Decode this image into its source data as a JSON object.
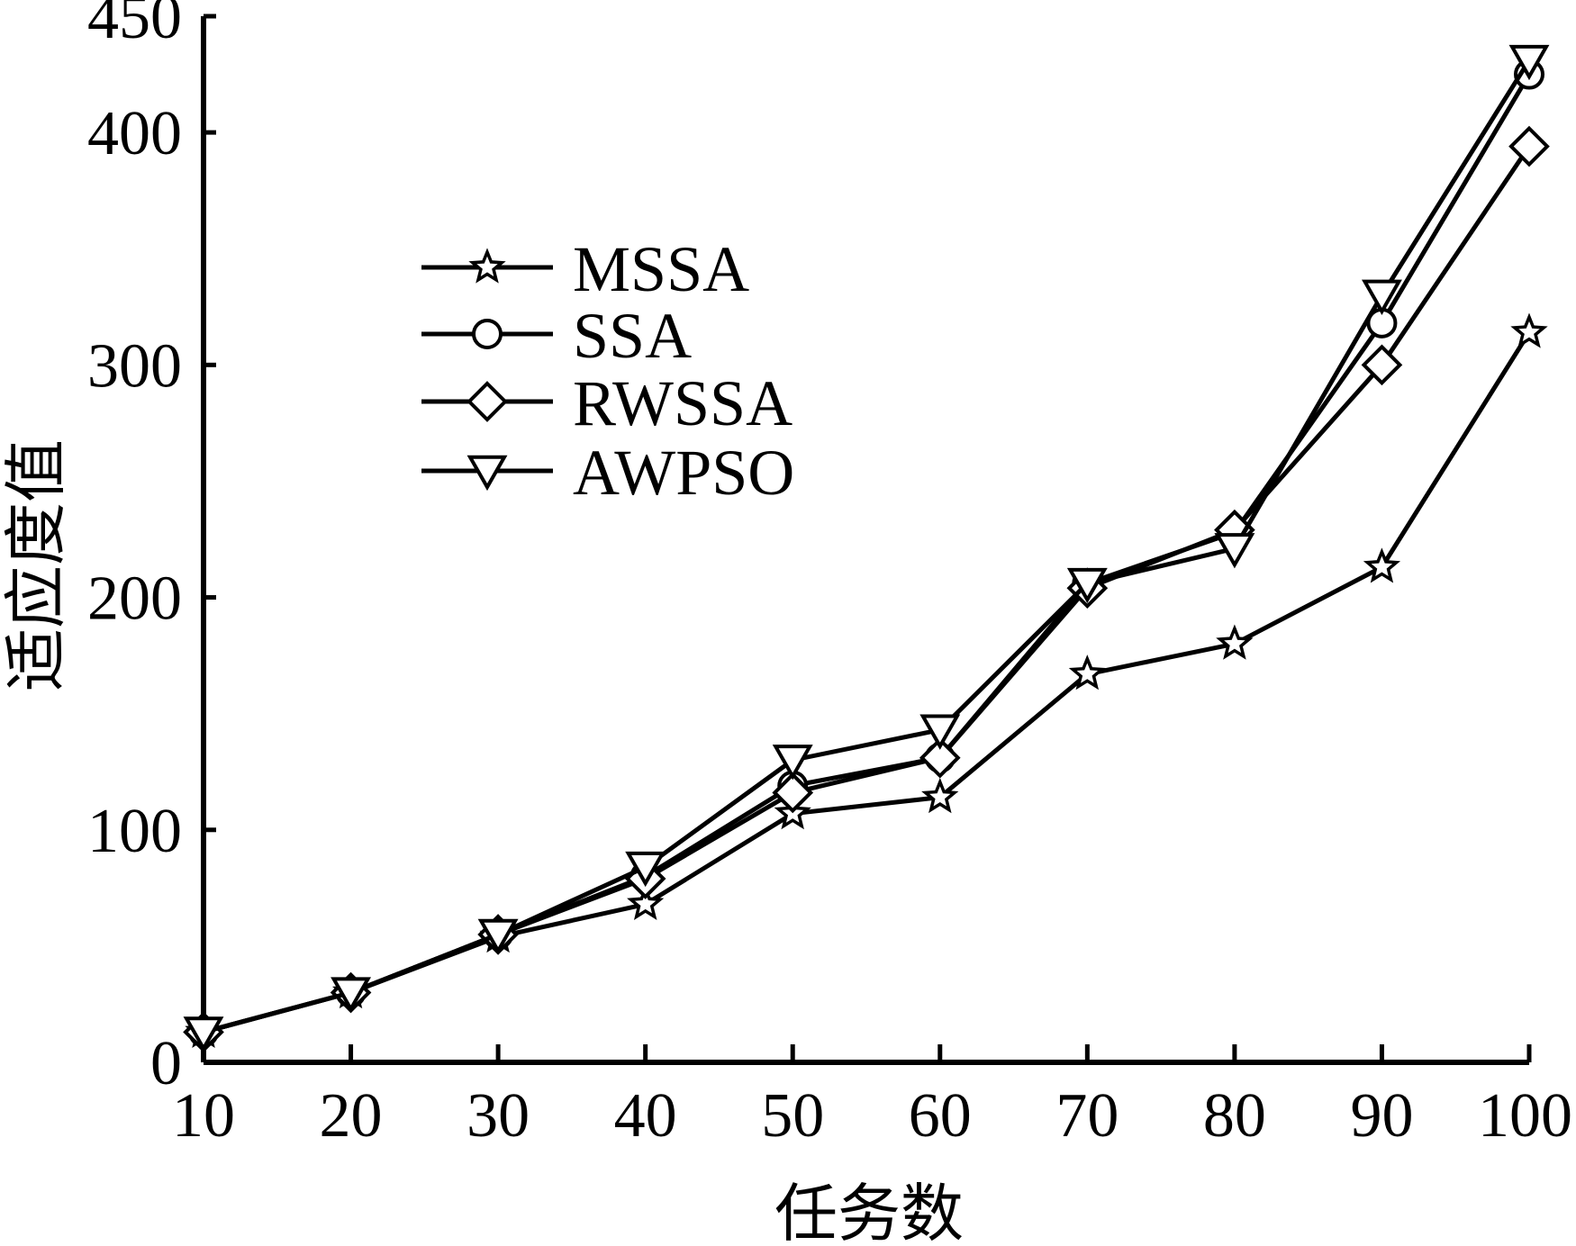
{
  "chart_data": {
    "type": "line",
    "title": "",
    "xlabel": "任务数",
    "ylabel": "适应度值",
    "xlim": [
      10,
      100
    ],
    "ylim": [
      0,
      450
    ],
    "x": [
      10,
      20,
      30,
      40,
      50,
      60,
      70,
      80,
      90,
      100
    ],
    "x_ticks": [
      10,
      20,
      30,
      40,
      50,
      60,
      70,
      80,
      90,
      100
    ],
    "y_ticks": [
      0,
      100,
      200,
      300,
      400,
      450
    ],
    "y_tick_labels": [
      "0",
      "100",
      "200",
      "300",
      "400",
      "450"
    ],
    "grid": false,
    "legend_position": "upper-left",
    "series": [
      {
        "name": "MSSA",
        "marker": "star",
        "values": [
          13,
          30,
          54,
          68,
          107,
          114,
          167,
          180,
          213,
          314
        ]
      },
      {
        "name": "SSA",
        "marker": "circle",
        "values": [
          13,
          30,
          55,
          80,
          119,
          131,
          206,
          228,
          318,
          425
        ]
      },
      {
        "name": "RWSSA",
        "marker": "diamond",
        "values": [
          13,
          30,
          55,
          79,
          116,
          131,
          204,
          229,
          300,
          394
        ]
      },
      {
        "name": "AWPSO",
        "marker": "triangle-down",
        "values": [
          13,
          30,
          55,
          84,
          130,
          143,
          206,
          221,
          330,
          431
        ]
      }
    ],
    "colors": {
      "line": "#000000",
      "marker_fill": "#ffffff",
      "axis": "#000000"
    }
  }
}
